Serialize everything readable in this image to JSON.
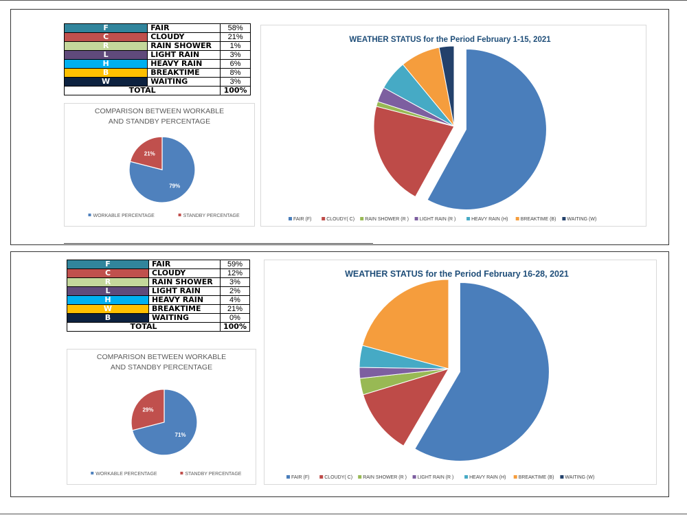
{
  "colors": {
    "fair": "#4a7ebb",
    "cloudy": "#be4b48",
    "rain_shower": "#98b954",
    "light_rain": "#7d5fa0",
    "heavy_rain": "#46aac5",
    "breaktime": "#f59d3d",
    "waiting": "#23416b",
    "title": "#1f4e79",
    "code_f": "#31859c",
    "code_c": "#c0504d",
    "code_r": "#c4d79b",
    "code_l": "#604a7b",
    "code_h": "#00b0f0",
    "code_b": "#ffc000",
    "code_w": "#0d2240"
  },
  "tables": [
    {
      "rows": [
        {
          "code": "F",
          "label": "FAIR",
          "pct": "58%",
          "color_key": "code_f"
        },
        {
          "code": "C",
          "label": "CLOUDY",
          "pct": "21%",
          "color_key": "code_c"
        },
        {
          "code": "R",
          "label": "RAIN SHOWER",
          "pct": "1%",
          "color_key": "code_r"
        },
        {
          "code": "L",
          "label": "LIGHT RAIN",
          "pct": "3%",
          "color_key": "code_l"
        },
        {
          "code": "H",
          "label": "HEAVY RAIN",
          "pct": "6%",
          "color_key": "code_h"
        },
        {
          "code": "B",
          "label": "BREAKTIME",
          "pct": "8%",
          "color_key": "code_b"
        },
        {
          "code": "W",
          "label": "WAITING",
          "pct": "3%",
          "color_key": "code_w"
        }
      ],
      "total_label": "TOTAL",
      "total_pct": "100%"
    },
    {
      "rows": [
        {
          "code": "F",
          "label": "FAIR",
          "pct": "59%",
          "color_key": "code_f"
        },
        {
          "code": "C",
          "label": "CLOUDY",
          "pct": "12%",
          "color_key": "code_c"
        },
        {
          "code": "R",
          "label": "RAIN SHOWER",
          "pct": "3%",
          "color_key": "code_r"
        },
        {
          "code": "L",
          "label": "LIGHT RAIN",
          "pct": "2%",
          "color_key": "code_l"
        },
        {
          "code": "H",
          "label": "HEAVY RAIN",
          "pct": "4%",
          "color_key": "code_h"
        },
        {
          "code": "W",
          "label": "BREAKTIME",
          "pct": "21%",
          "color_key": "code_b"
        },
        {
          "code": "B",
          "label": "WAITING",
          "pct": "0%",
          "color_key": "code_w"
        }
      ],
      "total_label": "TOTAL",
      "total_pct": "100%"
    }
  ],
  "chart_data": [
    {
      "type": "pie",
      "title": "COMPARISON BETWEEN WORKABLE AND STANDBY PERCENTAGE",
      "title_lines": [
        "COMPARISON BETWEEN WORKABLE",
        "AND STANDBY PERCENTAGE"
      ],
      "categories": [
        "WORKABLE PERCENTAGE",
        "STANDBY PERCENTAGE"
      ],
      "values": [
        79,
        21
      ],
      "data_labels": [
        "79%",
        "21%"
      ],
      "colors": [
        "#4f81bd",
        "#c0504d"
      ],
      "legend": "bottom"
    },
    {
      "type": "pie",
      "title": "WEATHER STATUS for the Period February 1-15, 2021",
      "categories": [
        "FAIR (F)",
        "CLOUDY( C)",
        "RAIN SHOWER (R )",
        "LIGHT RAIN (R )",
        "HEAVY RAIN (H)",
        "BREAKTIME (B)",
        "WAITING (W)"
      ],
      "values": [
        58,
        21,
        1,
        3,
        6,
        8,
        3
      ],
      "exploded": "FAIR (F)",
      "legend": "bottom"
    },
    {
      "type": "pie",
      "title": "COMPARISON BETWEEN WORKABLE AND STANDBY PERCENTAGE",
      "title_lines": [
        "COMPARISON BETWEEN WORKABLE",
        "AND STANDBY PERCENTAGE"
      ],
      "categories": [
        "WORKABLE PERCENTAGE",
        "STANDBY PERCENTAGE"
      ],
      "values": [
        71,
        29
      ],
      "data_labels": [
        "71%",
        "29%"
      ],
      "colors": [
        "#4f81bd",
        "#c0504d"
      ],
      "legend": "bottom"
    },
    {
      "type": "pie",
      "title": "WEATHER STATUS for the Period February 16-28, 2021",
      "categories": [
        "FAIR (F)",
        "CLOUDY( C)",
        "RAIN SHOWER (R )",
        "LIGHT RAIN (R )",
        "HEAVY RAIN (H)",
        "BREAKTIME (B)",
        "WAITING (W)"
      ],
      "values": [
        59,
        12,
        3,
        2,
        4,
        21,
        0
      ],
      "exploded": "FAIR (F)",
      "legend": "bottom"
    }
  ]
}
